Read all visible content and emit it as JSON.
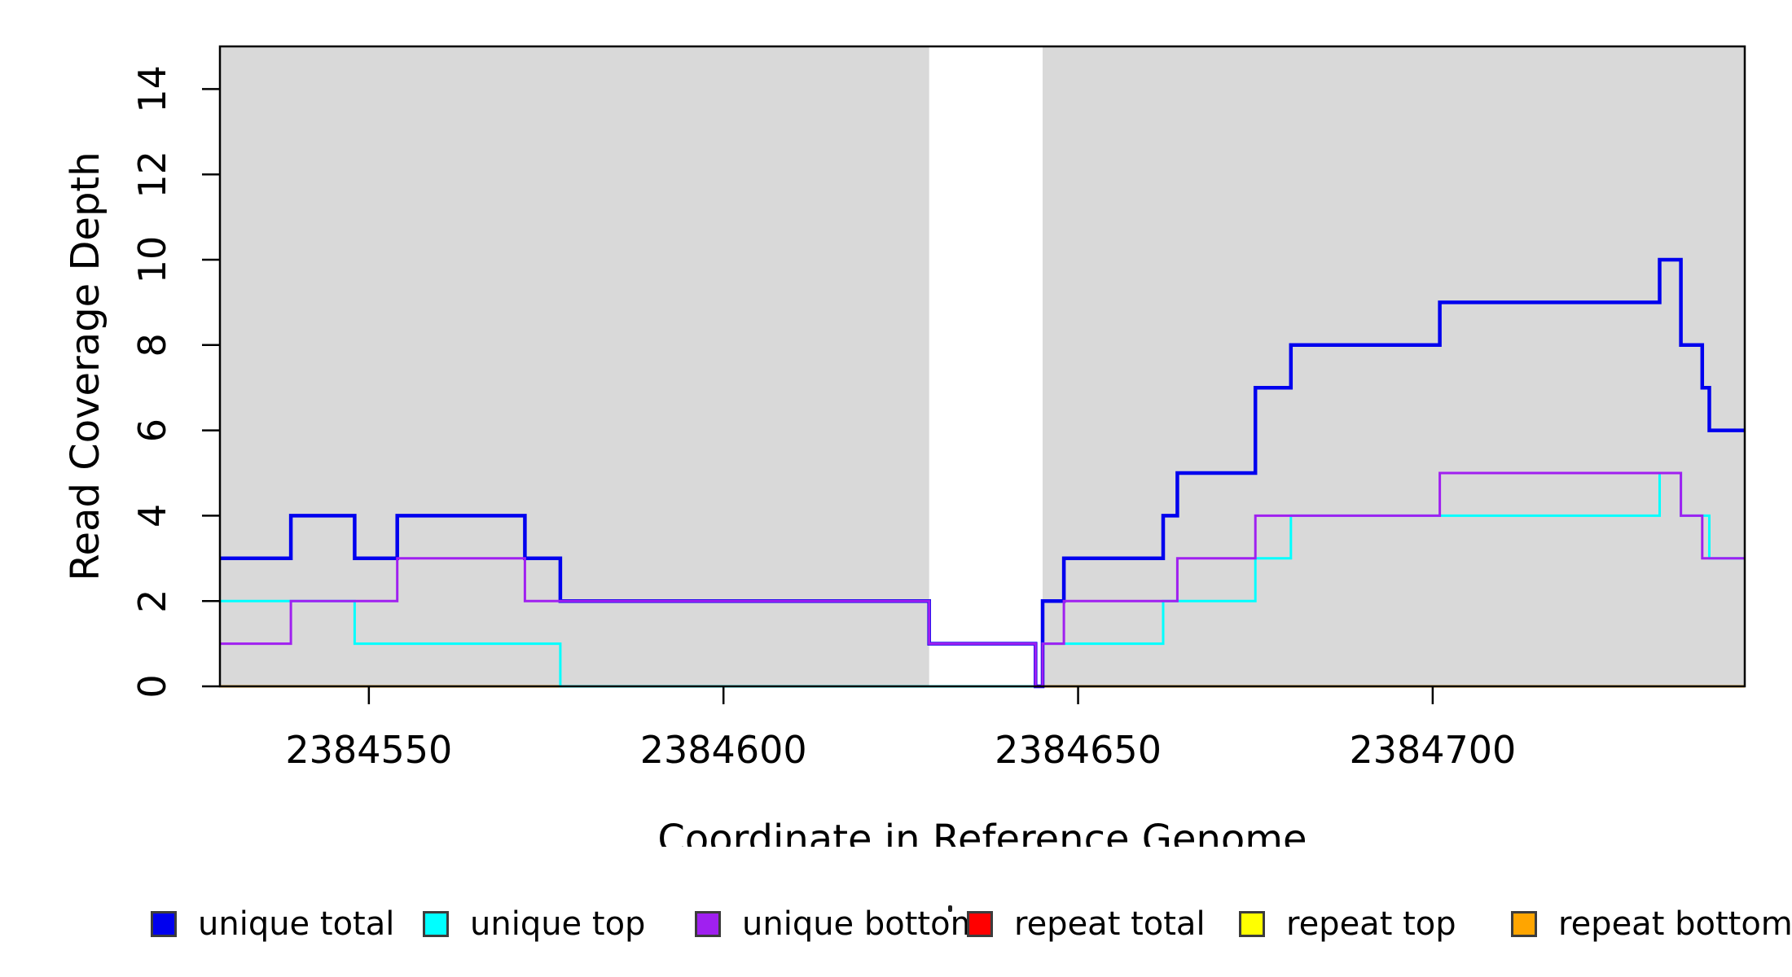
{
  "chart_data": {
    "type": "line",
    "step": true,
    "title": "",
    "xlabel": "Coordinate in Reference Genome",
    "ylabel": "Read Coverage Depth",
    "xlim": [
      2384529,
      2384744
    ],
    "ylim": [
      0,
      15
    ],
    "x_ticks": [
      2384550,
      2384600,
      2384650,
      2384700
    ],
    "y_ticks": [
      0,
      2,
      4,
      6,
      8,
      10,
      12,
      14
    ],
    "grid": false,
    "background_color": "#ffffff",
    "shaded_regions": {
      "label": "repeat-region-shading",
      "color": "#d9d9d9",
      "ranges": [
        [
          2384529,
          2384629
        ],
        [
          2384645,
          2384744
        ]
      ]
    },
    "series": [
      {
        "name": "repeat total",
        "color": "#ff0000",
        "width": 3,
        "steps": [
          [
            2384529,
            0
          ]
        ]
      },
      {
        "name": "repeat top",
        "color": "#ffff00",
        "width": 3,
        "steps": [
          [
            2384529,
            0
          ]
        ]
      },
      {
        "name": "repeat bottom",
        "color": "#ffa500",
        "width": 3,
        "steps": [
          [
            2384529,
            0
          ]
        ]
      },
      {
        "name": "unique total",
        "color": "#0000ee",
        "width": 4.5,
        "steps": [
          [
            2384529,
            3
          ],
          [
            2384539,
            4
          ],
          [
            2384548,
            3
          ],
          [
            2384554,
            4
          ],
          [
            2384572,
            3
          ],
          [
            2384577,
            2
          ],
          [
            2384629,
            1
          ],
          [
            2384644,
            0
          ],
          [
            2384645,
            2
          ],
          [
            2384648,
            3
          ],
          [
            2384662,
            4
          ],
          [
            2384664,
            5
          ],
          [
            2384675,
            7
          ],
          [
            2384680,
            8
          ],
          [
            2384701,
            9
          ],
          [
            2384732,
            10
          ],
          [
            2384735,
            8
          ],
          [
            2384738,
            7
          ],
          [
            2384739,
            6
          ]
        ]
      },
      {
        "name": "unique top",
        "color": "#00ffff",
        "width": 3,
        "steps": [
          [
            2384529,
            2
          ],
          [
            2384548,
            1
          ],
          [
            2384577,
            0
          ],
          [
            2384645,
            1
          ],
          [
            2384662,
            2
          ],
          [
            2384675,
            3
          ],
          [
            2384680,
            4
          ],
          [
            2384732,
            5
          ],
          [
            2384735,
            4
          ],
          [
            2384739,
            3
          ]
        ]
      },
      {
        "name": "unique bottom",
        "color": "#a020f0",
        "width": 3,
        "steps": [
          [
            2384529,
            1
          ],
          [
            2384539,
            2
          ],
          [
            2384554,
            3
          ],
          [
            2384572,
            2
          ],
          [
            2384629,
            1
          ],
          [
            2384644,
            0
          ],
          [
            2384645,
            1
          ],
          [
            2384648,
            2
          ],
          [
            2384664,
            3
          ],
          [
            2384675,
            4
          ],
          [
            2384701,
            5
          ],
          [
            2384735,
            4
          ],
          [
            2384738,
            3
          ]
        ]
      }
    ],
    "legend": {
      "position": "bottom",
      "items": [
        {
          "label": "unique total",
          "color": "#0000ee"
        },
        {
          "label": "unique top",
          "color": "#00ffff"
        },
        {
          "label": "unique bottom",
          "color": "#a020f0"
        },
        {
          "label": "repeat total",
          "color": "#ff0000"
        },
        {
          "label": "repeat top",
          "color": "#ffff00"
        },
        {
          "label": "repeat bottom",
          "color": "#ffa500"
        }
      ]
    }
  }
}
